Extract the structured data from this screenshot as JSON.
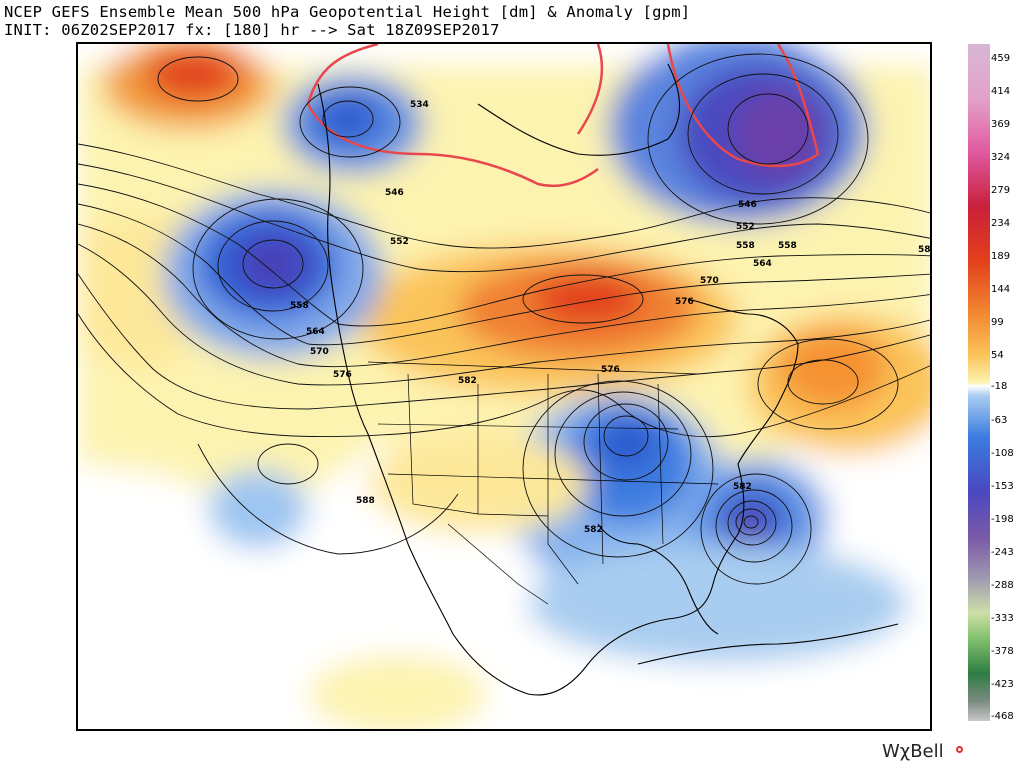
{
  "title": {
    "line1": "NCEP GEFS Ensemble Mean 500 hPa Geopotential Height [dm] & Anomaly [gpm]",
    "line2": "INIT: 06Z02SEP2017 fx: [180] hr --> Sat 18Z09SEP2017"
  },
  "colorbar": {
    "labels": [
      "459",
      "414",
      "369",
      "324",
      "279",
      "234",
      "189",
      "144",
      "99",
      "54",
      "-18",
      "-63",
      "-108",
      "-153",
      "-198",
      "-243",
      "-288",
      "-333",
      "-378",
      "-423",
      "-468"
    ]
  },
  "contour_labels": [
    "534",
    "546",
    "552",
    "558",
    "564",
    "570",
    "576",
    "582",
    "588",
    "558",
    "546",
    "552",
    "558",
    "564",
    "570",
    "576",
    "576",
    "582",
    "582",
    "58"
  ],
  "brand": {
    "text": "WχBell"
  },
  "colors": {
    "positive_light": "#fdf5b0",
    "positive_mid": "#f9a33a",
    "positive_strong": "#e2401c",
    "negative_light": "#a9cdf0",
    "negative_mid": "#2f70d8",
    "negative_strong": "#4a2fa3",
    "contour": "#000000",
    "zero_line": "#e8474c"
  }
}
